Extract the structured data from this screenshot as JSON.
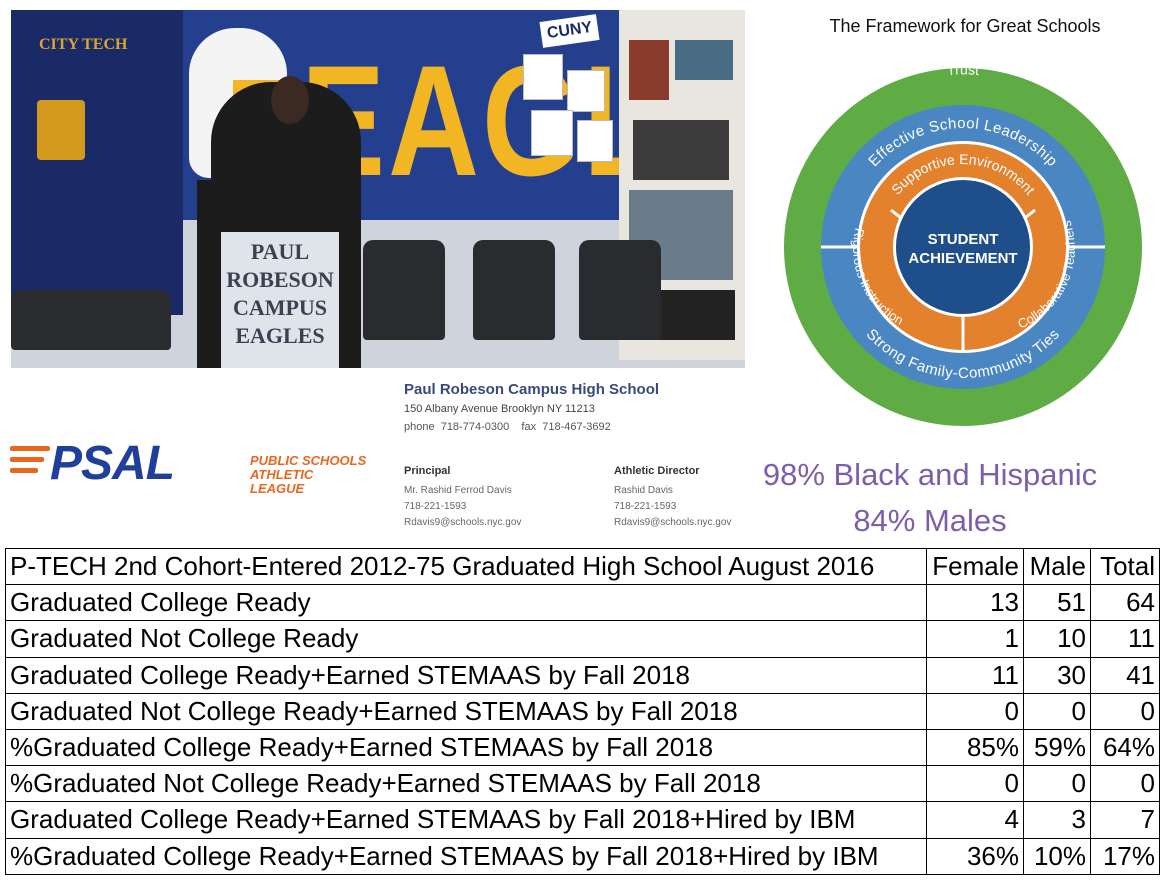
{
  "photo": {
    "banner_text": "EAGLES",
    "left_banner_text": "CITY TECH",
    "sign_text": "CUNY",
    "podium_lines": [
      "PAUL",
      "ROBESON",
      "CAMPUS",
      "EAGLES"
    ]
  },
  "framework": {
    "title": "The Framework for Great Schools",
    "outer_ring": "Trust",
    "middle_top": "Effective School Leadership",
    "middle_bottom": "Strong Family-Community Ties",
    "inner_top": "Supportive Environment",
    "inner_left": "Rigorous Instruction",
    "inner_right": "Collaborative Teachers",
    "center_line1": "STUDENT",
    "center_line2": "ACHIEVEMENT",
    "colors": {
      "outer": "#5fac45",
      "middle": "#4a86c1",
      "inner": "#e3812d",
      "center": "#1f4f8a"
    }
  },
  "school": {
    "name": "Paul Robeson Campus High School",
    "address": "150 Albany Avenue Brooklyn NY 11213",
    "phone": "phone  718-774-0300    fax  718-467-3692",
    "principal": {
      "heading": "Principal",
      "name": "Mr. Rashid Ferrod Davis",
      "phone": "718-221-1593",
      "email": "Rdavis9@schools.nyc.gov"
    },
    "athletic_director": {
      "heading": "Athletic Director",
      "name": "Rashid Davis",
      "phone": "718-221-1593",
      "email": "Rdavis9@schools.nyc.gov"
    }
  },
  "psal": {
    "logo_text": "PSAL",
    "line1": "PUBLIC SCHOOLS",
    "line2": "ATHLETIC LEAGUE",
    "colors": {
      "blue": "#1f3f9a",
      "orange": "#e8671f"
    }
  },
  "demographics": {
    "line1": "98% Black and Hispanic",
    "line2": "84% Males"
  },
  "table": {
    "header": [
      "P-TECH 2nd Cohort-Entered 2012-75 Graduated High School August 2016",
      "Female",
      "Male",
      "Total"
    ],
    "rows": [
      [
        "Graduated College Ready",
        "13",
        "51",
        "64"
      ],
      [
        "Graduated Not College Ready",
        "1",
        "10",
        "11"
      ],
      [
        "Graduated College Ready+Earned STEMAAS by Fall 2018",
        "11",
        "30",
        "41"
      ],
      [
        "Graduated Not College Ready+Earned STEMAAS by Fall 2018",
        "0",
        "0",
        "0"
      ],
      [
        "%Graduated College Ready+Earned STEMAAS by Fall 2018",
        "85%",
        "59%",
        "64%"
      ],
      [
        "%Graduated Not College Ready+Earned STEMAAS by Fall 2018",
        "0",
        "0",
        "0"
      ],
      [
        "Graduated College Ready+Earned STEMAAS by Fall 2018+Hired by IBM",
        "4",
        "3",
        "7"
      ],
      [
        "%Graduated College Ready+Earned STEMAAS by Fall 2018+Hired by IBM",
        "36%",
        "10%",
        "17%"
      ]
    ]
  }
}
